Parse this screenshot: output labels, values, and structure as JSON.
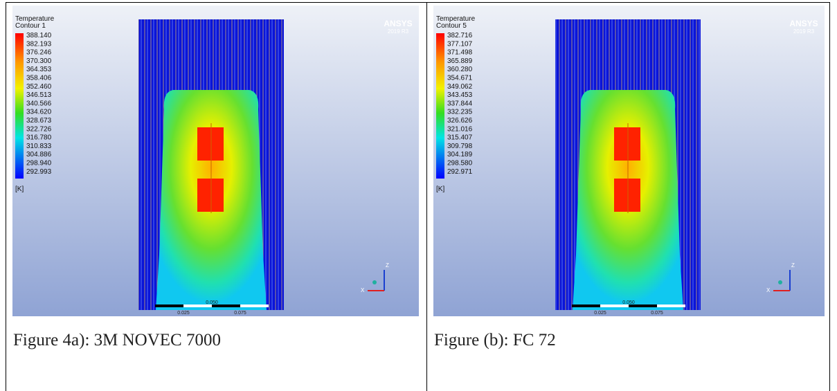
{
  "panels": [
    {
      "title": "Temperature",
      "subtitle": "Contour 1",
      "legend": [
        "388.140",
        "382.193",
        "376.246",
        "370.300",
        "364.353",
        "358.406",
        "352.460",
        "346.513",
        "340.566",
        "334.620",
        "328.673",
        "322.726",
        "316.780",
        "310.833",
        "304.886",
        "298.940",
        "292.993"
      ],
      "unit": "[K]",
      "logo": "ANSYS",
      "version": "2019 R3",
      "scale": [
        "0.025",
        "0.050",
        "0.075"
      ],
      "axes": [
        "Z",
        "X"
      ],
      "caption": "Figure 4a): 3M NOVEC 7000"
    },
    {
      "title": "Temperature",
      "subtitle": "Contour 5",
      "legend": [
        "382.716",
        "377.107",
        "371.498",
        "365.889",
        "360.280",
        "354.671",
        "349.062",
        "343.453",
        "337.844",
        "332.235",
        "326.626",
        "321.016",
        "315.407",
        "309.798",
        "304.189",
        "298.580",
        "292.971"
      ],
      "unit": "[K]",
      "logo": "ANSYS",
      "version": "2019 R3",
      "scale": [
        "0.025",
        "0.050",
        "0.075"
      ],
      "axes": [
        "Z",
        "X"
      ],
      "caption": "Figure (b): FC 72"
    }
  ]
}
